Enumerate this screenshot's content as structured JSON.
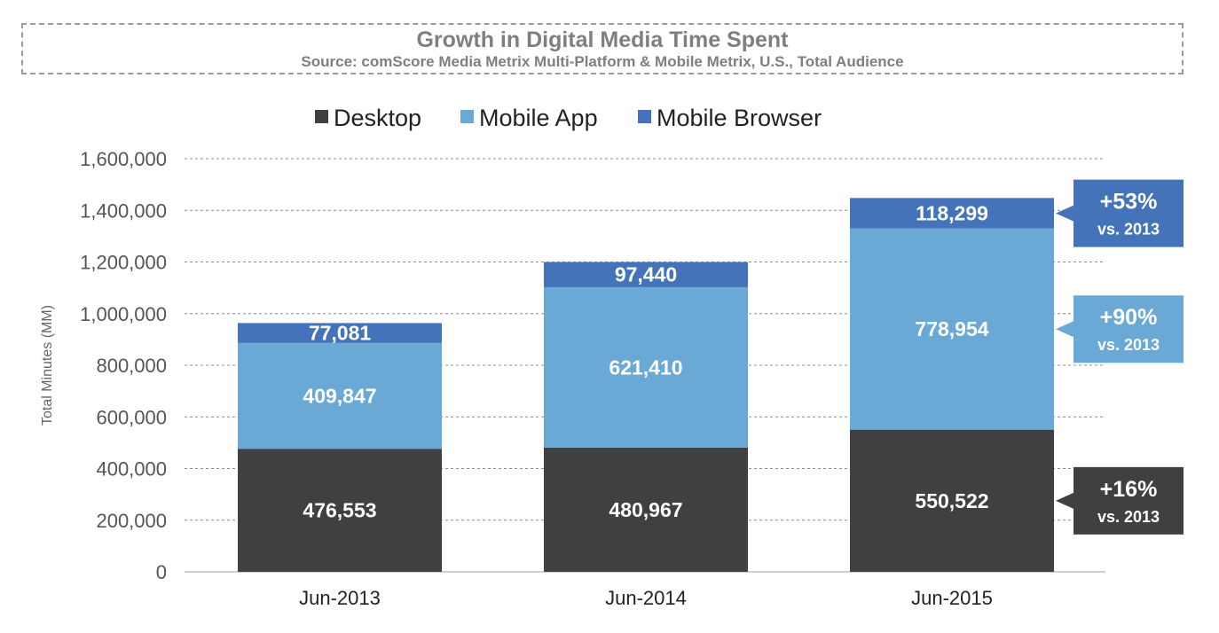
{
  "chart_data": {
    "type": "bar",
    "stacked": true,
    "title": "Growth in Digital Media Time Spent",
    "subtitle": "Source: comScore Media Metrix Multi-Platform & Mobile Metrix, U.S., Total Audience",
    "xlabel": "",
    "ylabel": "Total Minutes (MM)",
    "ylim": [
      0,
      1600000
    ],
    "yticks": [
      "0",
      "200,000",
      "400,000",
      "600,000",
      "800,000",
      "1,000,000",
      "1,200,000",
      "1,400,000",
      "1,600,000"
    ],
    "ytick_values": [
      0,
      200000,
      400000,
      600000,
      800000,
      1000000,
      1200000,
      1400000,
      1600000
    ],
    "grid": true,
    "legend_position": "top",
    "categories": [
      "Jun-2013",
      "Jun-2014",
      "Jun-2015"
    ],
    "series": [
      {
        "name": "Desktop",
        "color": "#404040",
        "values": [
          476553,
          480967,
          550522
        ],
        "labels": [
          "476,553",
          "480,967",
          "550,522"
        ]
      },
      {
        "name": "Mobile App",
        "color": "#6aa9d6",
        "values": [
          409847,
          621410,
          778954
        ],
        "labels": [
          "409,847",
          "621,410",
          "778,954"
        ]
      },
      {
        "name": "Mobile Browser",
        "color": "#4573ba",
        "values": [
          77081,
          97440,
          118299
        ],
        "labels": [
          "77,081",
          "97,440",
          "118,299"
        ]
      }
    ],
    "callouts": [
      {
        "series": "Mobile Browser",
        "big": "+53%",
        "small": "vs. 2013"
      },
      {
        "series": "Mobile App",
        "big": "+90%",
        "small": "vs. 2013"
      },
      {
        "series": "Desktop",
        "big": "+16%",
        "small": "vs. 2013"
      }
    ]
  }
}
